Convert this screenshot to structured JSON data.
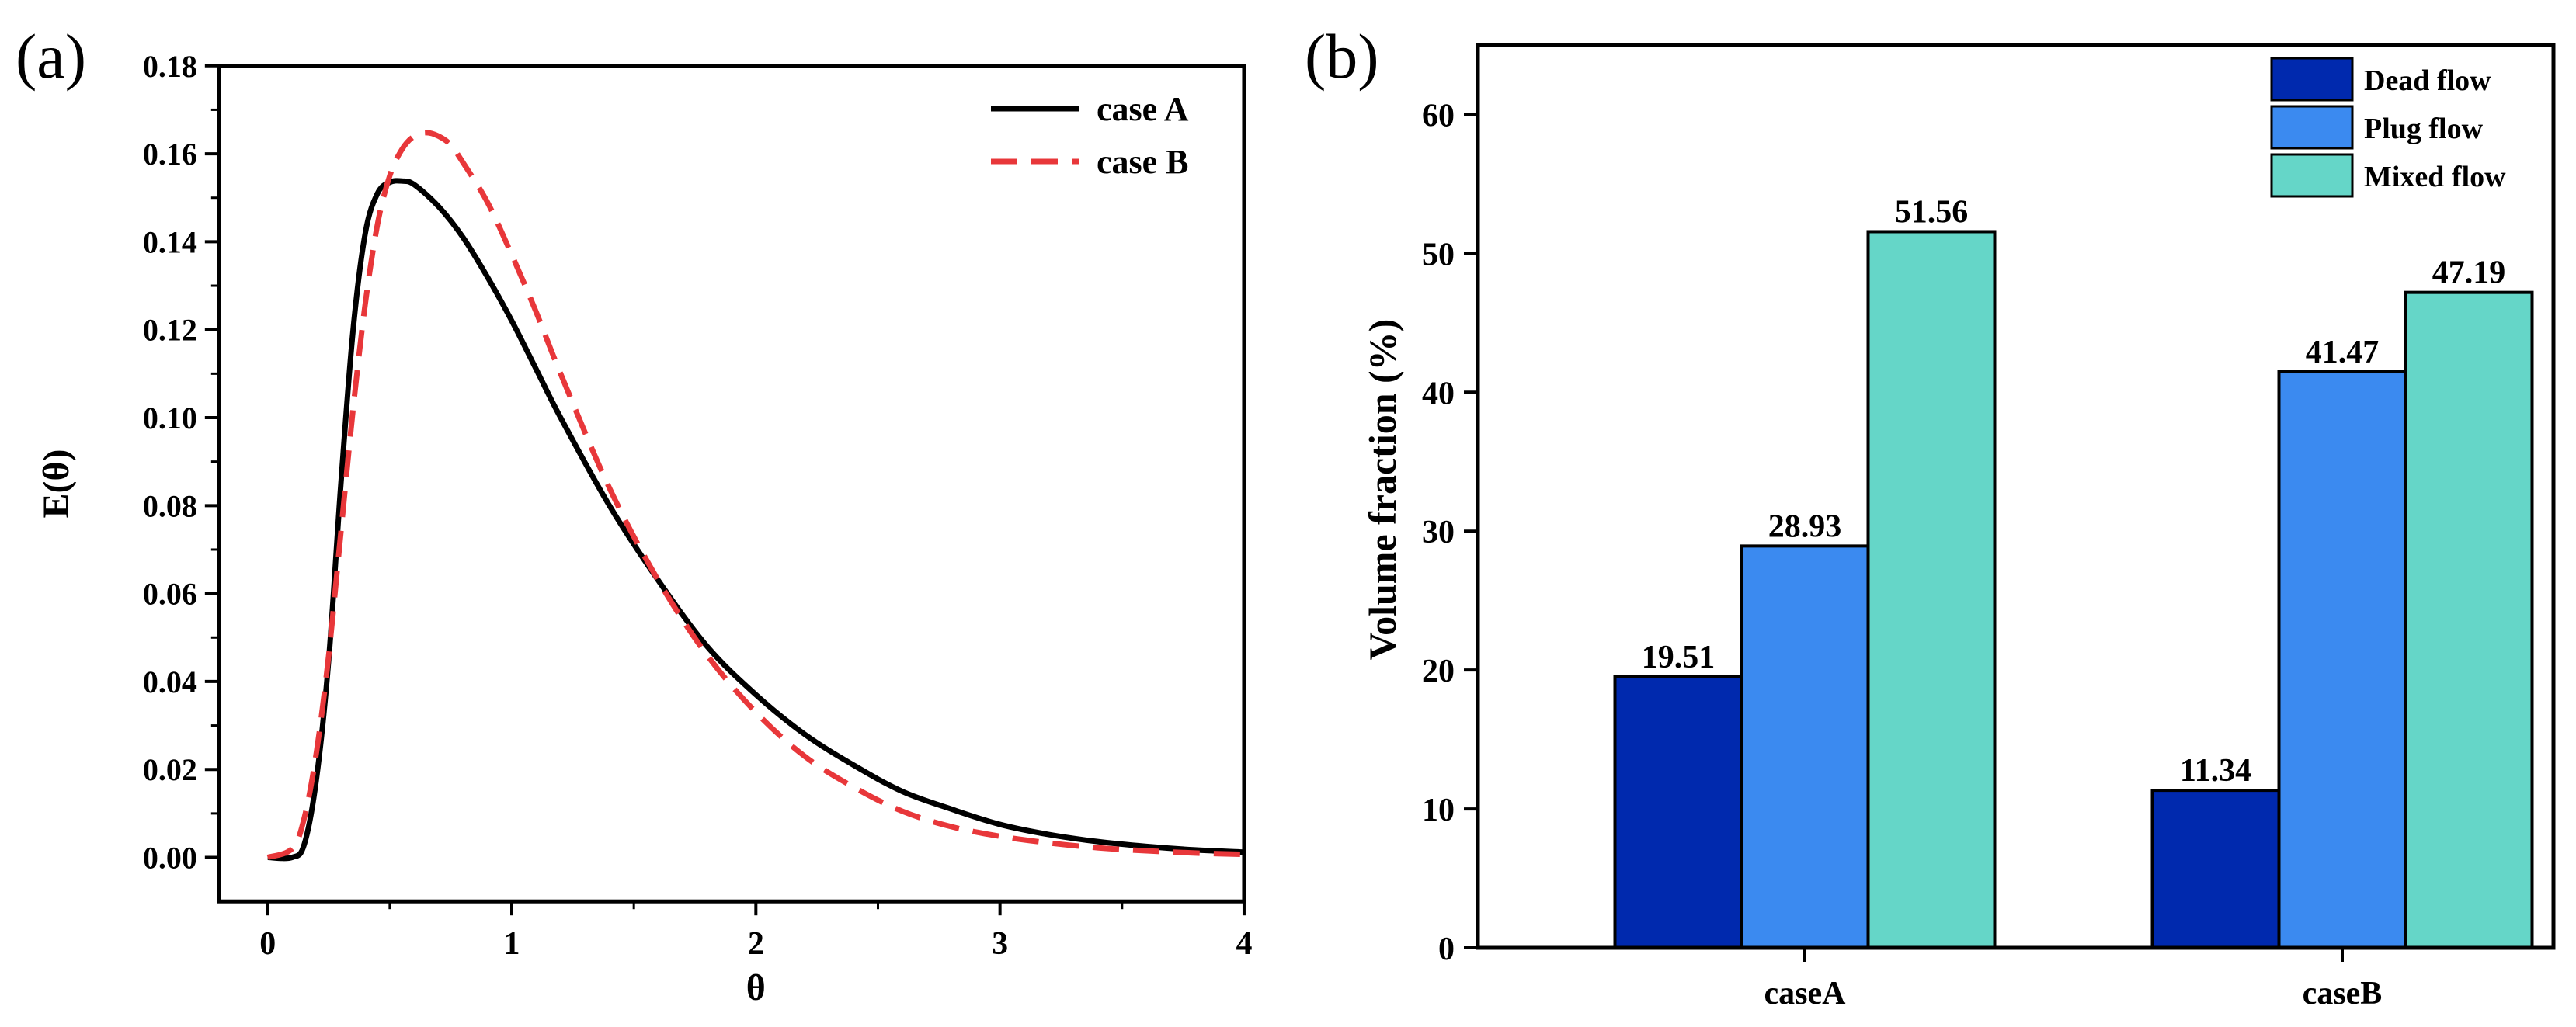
{
  "colors": {
    "caseA_line": "#000000",
    "caseB_line": "#E8373A",
    "dead_flow": "#0029AE",
    "plug_flow": "#3B8AF0",
    "mixed_flow": "#65D6C8",
    "axis": "#000000"
  },
  "chart_data": [
    {
      "panel_label": "(a)",
      "type": "line",
      "xlabel": "θ",
      "ylabel": "E(θ)",
      "xlim": [
        -0.2,
        4
      ],
      "ylim": [
        -0.01,
        0.18
      ],
      "xticks": [
        0,
        1,
        2,
        3,
        4
      ],
      "xtick_labels": [
        "0",
        "1",
        "2",
        "3",
        "4"
      ],
      "yticks": [
        0,
        0.02,
        0.04,
        0.06,
        0.08,
        0.1,
        0.12,
        0.14,
        0.16,
        0.18
      ],
      "ytick_labels": [
        "0.00",
        "0.02",
        "0.04",
        "0.06",
        "0.08",
        "0.10",
        "0.12",
        "0.14",
        "0.16",
        "0.18"
      ],
      "legend_position": "top-right",
      "series": [
        {
          "name": "case A",
          "style": "solid",
          "x": [
            0,
            0.1,
            0.15,
            0.2,
            0.25,
            0.3,
            0.35,
            0.4,
            0.45,
            0.5,
            0.55,
            0.6,
            0.7,
            0.8,
            0.9,
            1.0,
            1.1,
            1.2,
            1.4,
            1.6,
            1.8,
            2.0,
            2.2,
            2.4,
            2.6,
            2.8,
            3.0,
            3.2,
            3.4,
            3.6,
            3.8,
            4.0
          ],
          "y": [
            0,
            0,
            0.003,
            0.018,
            0.045,
            0.085,
            0.12,
            0.142,
            0.151,
            0.1535,
            0.1538,
            0.153,
            0.148,
            0.141,
            0.132,
            0.122,
            0.111,
            0.1,
            0.08,
            0.063,
            0.048,
            0.037,
            0.028,
            0.021,
            0.015,
            0.011,
            0.0075,
            0.0052,
            0.0036,
            0.0025,
            0.0017,
            0.0012
          ]
        },
        {
          "name": "case B",
          "style": "dashed",
          "x": [
            0,
            0.1,
            0.15,
            0.2,
            0.25,
            0.3,
            0.35,
            0.4,
            0.45,
            0.5,
            0.55,
            0.6,
            0.65,
            0.7,
            0.75,
            0.8,
            0.9,
            1.0,
            1.1,
            1.2,
            1.4,
            1.6,
            1.8,
            2.0,
            2.2,
            2.4,
            2.6,
            2.8,
            3.0,
            3.2,
            3.4,
            3.6,
            3.8,
            4.0
          ],
          "y": [
            0,
            0.002,
            0.009,
            0.024,
            0.046,
            0.074,
            0.102,
            0.126,
            0.144,
            0.155,
            0.161,
            0.164,
            0.1648,
            0.164,
            0.162,
            0.158,
            0.149,
            0.137,
            0.124,
            0.11,
            0.084,
            0.063,
            0.046,
            0.033,
            0.023,
            0.016,
            0.0105,
            0.007,
            0.0048,
            0.0033,
            0.0022,
            0.0015,
            0.001,
            0.0007
          ]
        }
      ]
    },
    {
      "panel_label": "(b)",
      "type": "bar",
      "ylabel": "Volume fraction (%)",
      "xlabel": "",
      "ylim": [
        0,
        65
      ],
      "yticks": [
        0,
        10,
        20,
        30,
        40,
        50,
        60
      ],
      "ytick_labels": [
        "0",
        "10",
        "20",
        "30",
        "40",
        "50",
        "60"
      ],
      "categories": [
        "caseA",
        "caseB"
      ],
      "legend_position": "top-right",
      "series": [
        {
          "name": "Dead flow",
          "values": [
            19.51,
            11.34
          ],
          "labels": [
            "19.51",
            "11.34"
          ]
        },
        {
          "name": "Plug flow",
          "values": [
            28.93,
            41.47
          ],
          "labels": [
            "28.93",
            "41.47"
          ]
        },
        {
          "name": "Mixed flow",
          "values": [
            51.56,
            47.19
          ],
          "labels": [
            "51.56",
            "47.19"
          ]
        }
      ]
    }
  ]
}
